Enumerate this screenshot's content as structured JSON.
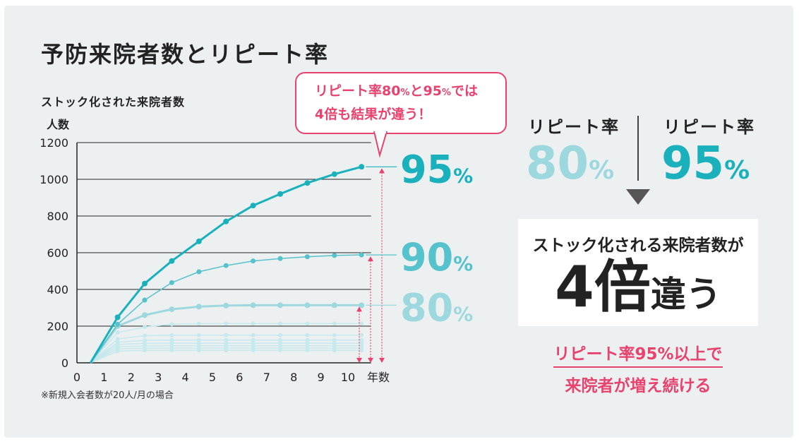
{
  "page": {
    "title": "予防来院者数とリピート率",
    "footnote": "※新規入会者数が20人/月の場合"
  },
  "callout": {
    "line1_a": "リピート率80",
    "line1_pct1": "%",
    "line1_b": "と95",
    "line1_pct2": "%",
    "line1_c": "では",
    "line2": "4倍も結果が違う！"
  },
  "compare": {
    "left_label": "リピート率",
    "left_value": "80",
    "left_unit": "%",
    "right_label": "リピート率",
    "right_value": "95",
    "right_unit": "%"
  },
  "result": {
    "line1": "ストック化される来院者数が",
    "num": "4",
    "kanji": "倍",
    "tail": "違う"
  },
  "conclusion": {
    "line1": "リピート率95%以上で",
    "line2": "来院者が増え続ける"
  },
  "colors": {
    "teal": "#1ab1bd",
    "teal_mid": "#55c2cc",
    "teal_light": "#9ed8df",
    "faint": "#c6e9ed",
    "accent": "#e8436e"
  },
  "chart_data": {
    "type": "line",
    "title": "",
    "subtitle": "ストック化された来院者数",
    "ylabel": "人数",
    "xlabel": "年数",
    "xlim": [
      0,
      10.5
    ],
    "ylim": [
      0,
      1200
    ],
    "xticks": [
      0,
      1,
      2,
      3,
      4,
      5,
      6,
      7,
      8,
      9,
      10
    ],
    "yticks": [
      0,
      200,
      400,
      600,
      800,
      1000,
      1200
    ],
    "grid": "horizontal",
    "x": [
      0.5,
      1.5,
      2.5,
      3.5,
      4.5,
      5.5,
      6.5,
      7.5,
      8.5,
      9.5,
      10.5
    ],
    "series": [
      {
        "name": "95%",
        "color": "#1ab1bd",
        "width": 3,
        "r": 4,
        "values": [
          0,
          248,
          432,
          555,
          662,
          770,
          857,
          920,
          980,
          1028,
          1068
        ]
      },
      {
        "name": "90%",
        "color": "#55c2cc",
        "width": 1.5,
        "r": 3.5,
        "values": [
          0,
          210,
          342,
          437,
          496,
          530,
          555,
          568,
          578,
          585,
          588
        ]
      },
      {
        "name": "80%",
        "color": "#9ed8df",
        "width": 3,
        "r": 4,
        "values": [
          0,
          200,
          260,
          292,
          306,
          312,
          314,
          314,
          314,
          314,
          314
        ]
      },
      {
        "name": "",
        "color": "#c6e9ed",
        "width": 1.5,
        "r": 3,
        "values": [
          0,
          165,
          195,
          210,
          213,
          214,
          214,
          214,
          214,
          214,
          214
        ]
      },
      {
        "name": "",
        "color": "#c6e9ed",
        "width": 1.5,
        "r": 3,
        "values": [
          0,
          130,
          148,
          150,
          151,
          151,
          151,
          151,
          151,
          151,
          151
        ]
      },
      {
        "name": "",
        "color": "#c6e9ed",
        "width": 1.5,
        "r": 3,
        "values": [
          0,
          112,
          122,
          124,
          124,
          124,
          124,
          124,
          124,
          124,
          124
        ]
      },
      {
        "name": "",
        "color": "#c6e9ed",
        "width": 1.5,
        "r": 3,
        "values": [
          0,
          100,
          106,
          107,
          107,
          107,
          107,
          107,
          107,
          107,
          107
        ]
      },
      {
        "name": "",
        "color": "#c6e9ed",
        "width": 1.5,
        "r": 3,
        "values": [
          0,
          88,
          92,
          93,
          93,
          93,
          93,
          93,
          93,
          93,
          93
        ]
      },
      {
        "name": "",
        "color": "#c6e9ed",
        "width": 1.5,
        "r": 3,
        "values": [
          0,
          76,
          80,
          80,
          80,
          80,
          80,
          80,
          80,
          80,
          80
        ]
      },
      {
        "name": "",
        "color": "#c6e9ed",
        "width": 1.5,
        "r": 3,
        "values": [
          0,
          64,
          68,
          68,
          68,
          68,
          68,
          68,
          68,
          68,
          68
        ]
      }
    ],
    "annotations": [
      {
        "series": "95%",
        "label_num": "95",
        "label_unit": "%",
        "color": "#1ab1bd"
      },
      {
        "series": "90%",
        "label_num": "90",
        "label_unit": "%",
        "color": "#55c2cc"
      },
      {
        "series": "80%",
        "label_num": "80",
        "label_unit": "%",
        "color": "#9ed8df"
      }
    ]
  }
}
